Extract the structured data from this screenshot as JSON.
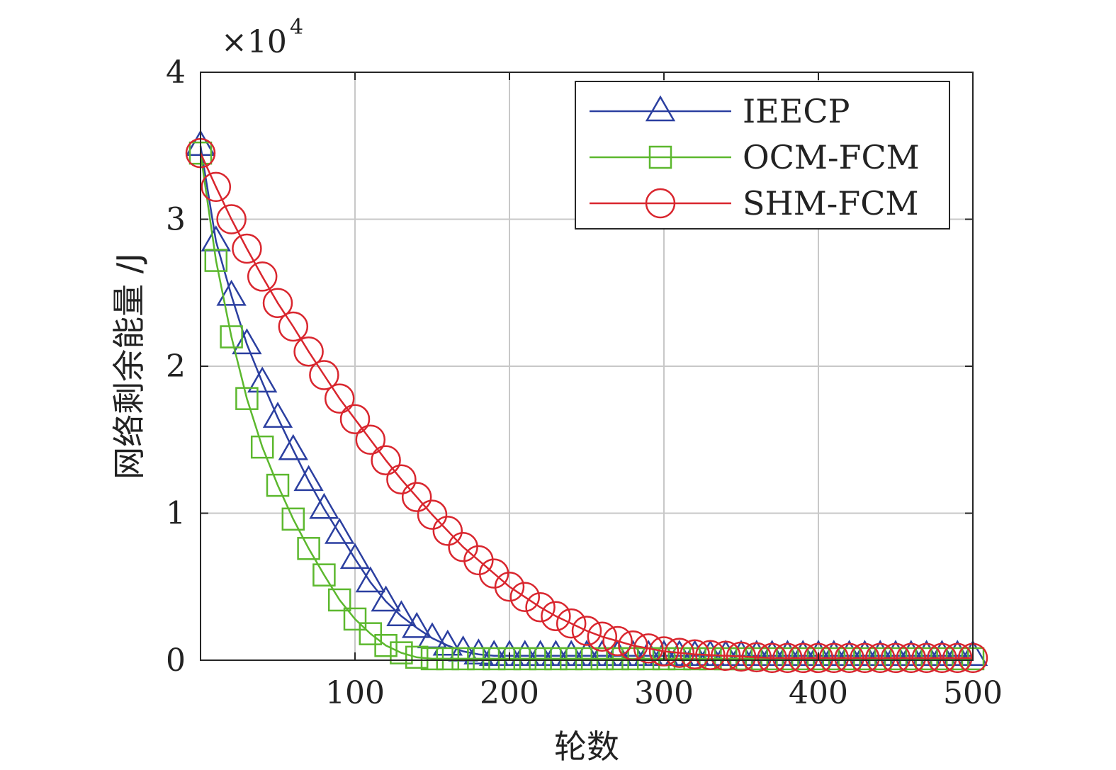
{
  "chart_data": {
    "type": "line",
    "title": "",
    "xlabel": "轮数",
    "ylabel": "网络剩余能量 /J",
    "y_multiplier_label": {
      "base": "×10",
      "exponent": "4"
    },
    "xlim": [
      0,
      500
    ],
    "ylim": [
      0,
      40000
    ],
    "xticks": [
      100,
      200,
      300,
      400,
      500
    ],
    "xtick_labels": [
      "100",
      "200",
      "300",
      "400",
      "500"
    ],
    "yticks": [
      0,
      10000,
      20000,
      30000,
      40000
    ],
    "ytick_labels": [
      "0",
      "1",
      "2",
      "3",
      "4"
    ],
    "grid": true,
    "legend_position": "top-right",
    "series": [
      {
        "name": "IEECP",
        "color": "#2b3fa0",
        "marker": "triangle",
        "x": [
          0,
          10,
          20,
          30,
          40,
          50,
          60,
          70,
          80,
          90,
          100,
          110,
          120,
          130,
          140,
          150,
          160,
          170,
          180,
          190,
          200,
          210,
          220,
          230,
          240,
          250,
          260,
          270,
          280,
          290,
          300,
          310,
          320,
          330,
          340,
          350,
          360,
          370,
          380,
          390,
          400,
          410,
          420,
          430,
          440,
          450,
          460,
          470,
          480,
          490,
          500
        ],
        "y": [
          35000,
          28500,
          24800,
          21500,
          18900,
          16500,
          14300,
          12200,
          10300,
          8600,
          6900,
          5300,
          4000,
          3000,
          2200,
          1500,
          1000,
          600,
          400,
          300,
          300,
          300,
          300,
          300,
          300,
          300,
          300,
          300,
          300,
          300,
          300,
          300,
          300,
          300,
          300,
          300,
          300,
          300,
          300,
          300,
          300,
          300,
          300,
          300,
          300,
          300,
          300,
          300,
          300,
          300,
          300
        ]
      },
      {
        "name": "OCM-FCM",
        "color": "#5cb82e",
        "marker": "square",
        "x": [
          0,
          10,
          20,
          30,
          40,
          50,
          60,
          70,
          80,
          90,
          100,
          110,
          120,
          130,
          140,
          150,
          160,
          170,
          180,
          190,
          200,
          210,
          220,
          230,
          240,
          250,
          260,
          270,
          280,
          290,
          300,
          310,
          320,
          330,
          340,
          350,
          360,
          370,
          380,
          390,
          400,
          410,
          420,
          430,
          440,
          450,
          460,
          470,
          480,
          490,
          500
        ],
        "y": [
          34500,
          27200,
          22000,
          17800,
          14500,
          11900,
          9600,
          7600,
          5800,
          4100,
          2800,
          1800,
          1000,
          500,
          200,
          100,
          100,
          100,
          100,
          100,
          100,
          100,
          100,
          100,
          100,
          100,
          100,
          100,
          100,
          100,
          100,
          100,
          100,
          100,
          100,
          100,
          100,
          100,
          100,
          100,
          100,
          100,
          100,
          100,
          100,
          100,
          100,
          100,
          100,
          100,
          100
        ]
      },
      {
        "name": "SHM-FCM",
        "color": "#d9262e",
        "marker": "circle",
        "x": [
          0,
          10,
          20,
          30,
          40,
          50,
          60,
          70,
          80,
          90,
          100,
          110,
          120,
          130,
          140,
          150,
          160,
          170,
          180,
          190,
          200,
          210,
          220,
          230,
          240,
          250,
          260,
          270,
          280,
          290,
          300,
          310,
          320,
          330,
          340,
          350,
          360,
          370,
          380,
          390,
          400,
          410,
          420,
          430,
          440,
          450,
          460,
          470,
          480,
          490,
          500
        ],
        "y": [
          34500,
          32200,
          30000,
          28000,
          26100,
          24300,
          22700,
          21000,
          19400,
          17800,
          16400,
          15000,
          13600,
          12300,
          11100,
          9900,
          8800,
          7700,
          6800,
          5900,
          5000,
          4300,
          3600,
          3000,
          2500,
          2000,
          1600,
          1300,
          1000,
          800,
          600,
          500,
          400,
          350,
          300,
          250,
          200,
          150,
          150,
          150,
          150,
          150,
          150,
          150,
          150,
          150,
          150,
          150,
          150,
          150,
          150
        ]
      }
    ]
  }
}
